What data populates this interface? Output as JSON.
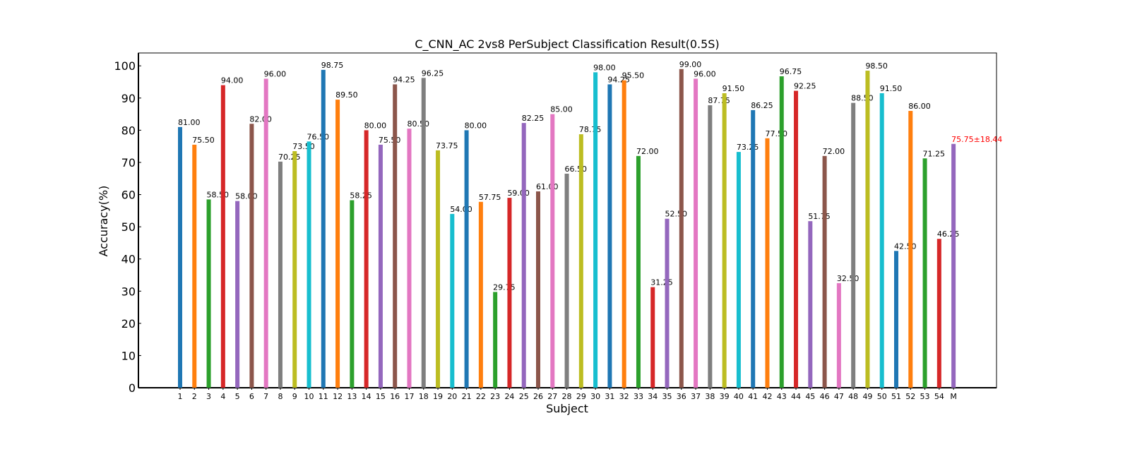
{
  "chart_data": {
    "type": "bar",
    "title": "C_CNN_AC 2vs8 PerSubject Classification Result(0.5S)",
    "xlabel": "Subject",
    "ylabel": "Accuracy(%)",
    "ylim": [
      0,
      104
    ],
    "yticks": [
      "0",
      "10",
      "20",
      "30",
      "40",
      "50",
      "60",
      "70",
      "80",
      "90",
      "100"
    ],
    "grid": false,
    "legend": "none",
    "categories": [
      "1",
      "2",
      "3",
      "4",
      "5",
      "6",
      "7",
      "8",
      "9",
      "10",
      "11",
      "12",
      "13",
      "14",
      "15",
      "16",
      "17",
      "18",
      "19",
      "20",
      "21",
      "22",
      "23",
      "24",
      "25",
      "26",
      "27",
      "28",
      "29",
      "30",
      "31",
      "32",
      "33",
      "34",
      "35",
      "36",
      "37",
      "38",
      "39",
      "40",
      "41",
      "42",
      "43",
      "44",
      "45",
      "46",
      "47",
      "48",
      "49",
      "50",
      "51",
      "52",
      "53",
      "54",
      "M"
    ],
    "values": [
      81.0,
      75.5,
      58.5,
      94.0,
      58.0,
      82.0,
      96.0,
      70.25,
      73.5,
      76.5,
      98.75,
      89.5,
      58.25,
      80.0,
      75.5,
      94.25,
      80.5,
      96.25,
      73.75,
      54.0,
      80.0,
      57.75,
      29.75,
      59.0,
      82.25,
      61.0,
      85.0,
      66.5,
      78.75,
      98.0,
      94.25,
      95.5,
      72.0,
      31.25,
      52.5,
      99.0,
      96.0,
      87.75,
      91.5,
      73.25,
      86.25,
      77.5,
      96.75,
      92.25,
      51.75,
      72.0,
      32.5,
      88.5,
      98.5,
      91.5,
      42.5,
      86.0,
      71.25,
      46.25,
      75.75
    ],
    "data_labels": [
      "81.00",
      "75.50",
      "58.50",
      "94.00",
      "58.00",
      "82.00",
      "96.00",
      "70.25",
      "73.50",
      "76.50",
      "98.75",
      "89.50",
      "58.25",
      "80.00",
      "75.50",
      "94.25",
      "80.50",
      "96.25",
      "73.75",
      "54.00",
      "80.00",
      "57.75",
      "29.75",
      "59.00",
      "82.25",
      "61.00",
      "85.00",
      "66.50",
      "78.75",
      "98.00",
      "94.25",
      "95.50",
      "72.00",
      "31.25",
      "52.50",
      "99.00",
      "96.00",
      "87.75",
      "91.50",
      "73.25",
      "86.25",
      "77.50",
      "96.75",
      "92.25",
      "51.75",
      "72.00",
      "32.50",
      "88.50",
      "98.50",
      "91.50",
      "42.50",
      "86.00",
      "71.25",
      "46.25",
      "75.75±18.44"
    ],
    "colors": [
      "#1f77b4",
      "#ff7f0e",
      "#2ca02c",
      "#d62728",
      "#9467bd",
      "#8c564b",
      "#e377c2",
      "#7f7f7f",
      "#bcbd22",
      "#17becf"
    ],
    "mean_label_color": "#ff0000"
  }
}
